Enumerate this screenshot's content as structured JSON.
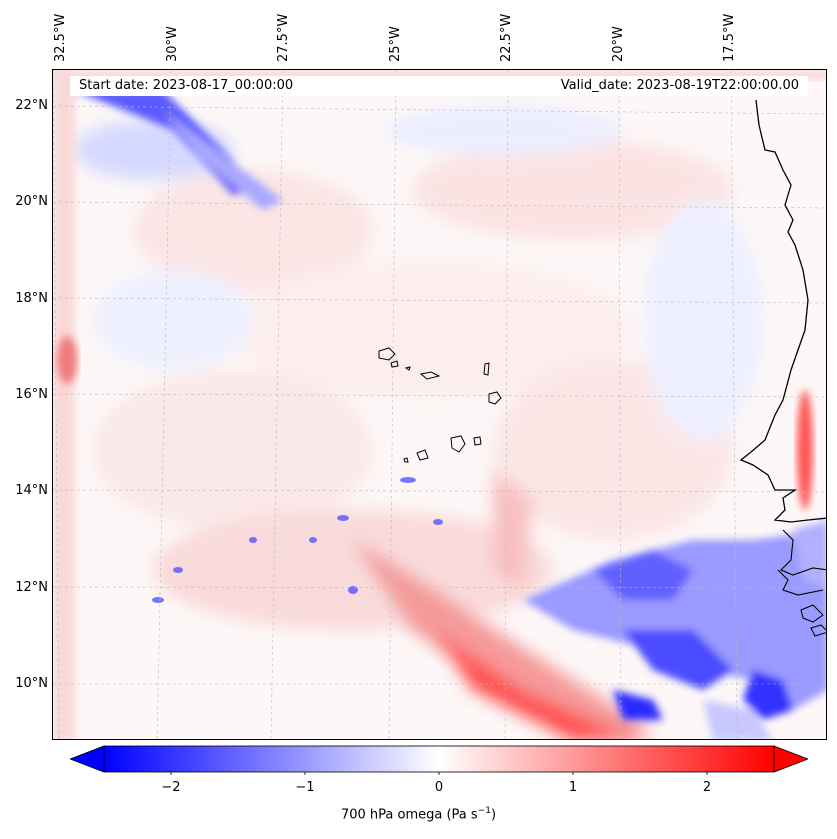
{
  "header": {
    "start_date": "Start date: 2023-08-17_00:00:00",
    "valid_date": "Valid_date: 2023-08-19T22:00:00.00"
  },
  "axes": {
    "longitude_labels": [
      "32.5°W",
      "30°W",
      "27.5°W",
      "25°W",
      "22.5°W",
      "20°W",
      "17.5°W"
    ],
    "latitude_labels": [
      "22°N",
      "20°N",
      "18°N",
      "16°N",
      "14°N",
      "12°N",
      "10°N"
    ]
  },
  "colorbar": {
    "ticks": [
      "−2",
      "−1",
      "0",
      "1",
      "2"
    ],
    "label": "700 hPa omega (Pa s",
    "label_exp": "−1",
    "label_close": ")",
    "colors": {
      "negative": "#0000ff",
      "zero": "#ffffff",
      "positive": "#ff0000"
    }
  }
}
